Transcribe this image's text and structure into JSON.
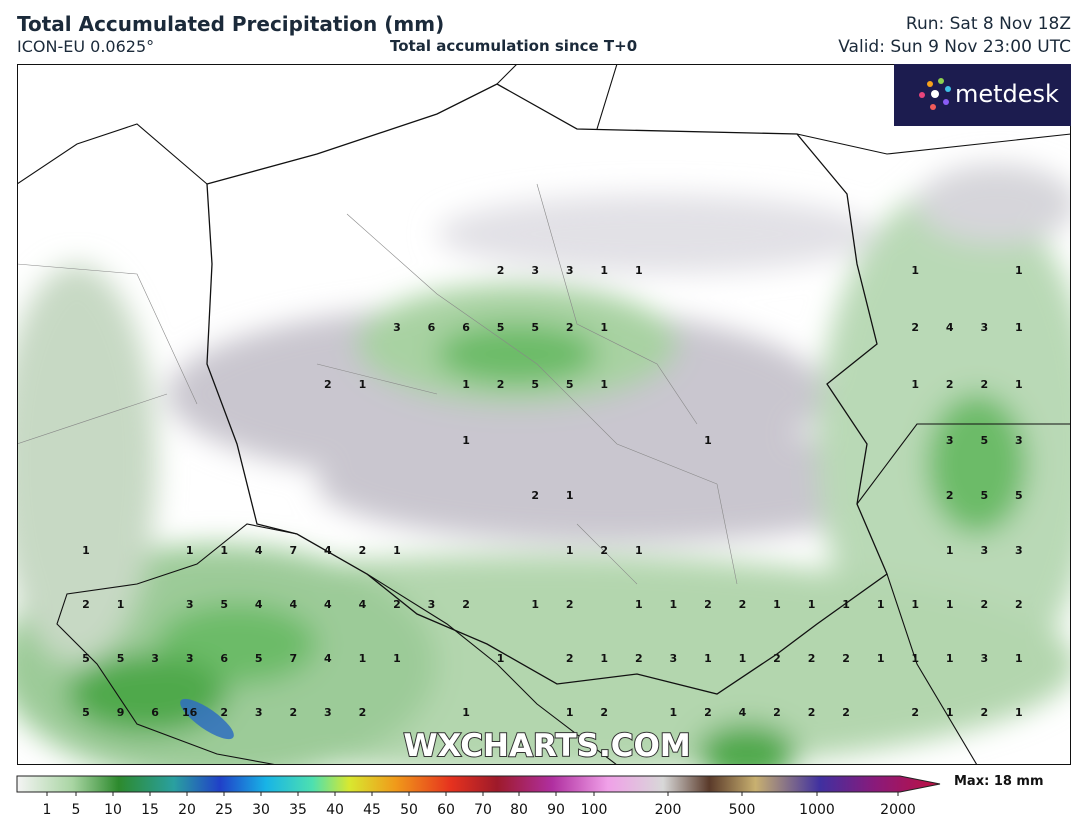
{
  "header": {
    "title": "Total Accumulated Precipitation (mm)",
    "model": "ICON-EU 0.0625°",
    "subtitle": "Total accumulation since T+0",
    "run": "Run: Sat 8 Nov 18Z",
    "valid": "Valid: Sun 9 Nov 23:00 UTC"
  },
  "logo": "metdesk",
  "watermark": "WXCHARTS.COM",
  "map": {
    "labels": [
      [
        null,
        null,
        null,
        null,
        null,
        null,
        null,
        null,
        null,
        null,
        null,
        null,
        2,
        3,
        3,
        1,
        1,
        null,
        null,
        null,
        null,
        null,
        null,
        null,
        1,
        null,
        null,
        1
      ],
      [
        null,
        null,
        null,
        null,
        null,
        null,
        null,
        null,
        null,
        3,
        6,
        6,
        5,
        5,
        2,
        1,
        null,
        null,
        null,
        null,
        null,
        null,
        null,
        null,
        2,
        4,
        3,
        1
      ],
      [
        null,
        null,
        null,
        null,
        null,
        null,
        null,
        2,
        1,
        null,
        null,
        1,
        2,
        5,
        5,
        1,
        null,
        null,
        null,
        null,
        null,
        null,
        null,
        null,
        1,
        2,
        2,
        1
      ],
      [
        null,
        null,
        null,
        null,
        null,
        null,
        null,
        null,
        null,
        null,
        null,
        1,
        null,
        null,
        null,
        null,
        null,
        null,
        1,
        null,
        null,
        null,
        null,
        null,
        null,
        3,
        5,
        3
      ],
      [
        null,
        null,
        null,
        null,
        null,
        null,
        null,
        null,
        null,
        null,
        null,
        null,
        null,
        2,
        1,
        null,
        null,
        null,
        null,
        null,
        null,
        null,
        null,
        null,
        null,
        2,
        5,
        5
      ],
      [
        1,
        null,
        null,
        1,
        1,
        4,
        7,
        4,
        2,
        1,
        null,
        null,
        null,
        null,
        1,
        2,
        1,
        null,
        null,
        null,
        null,
        null,
        null,
        null,
        null,
        1,
        3,
        3
      ],
      [
        2,
        1,
        null,
        3,
        5,
        4,
        4,
        4,
        4,
        2,
        3,
        2,
        null,
        1,
        2,
        null,
        1,
        1,
        2,
        2,
        1,
        1,
        1,
        1,
        1,
        1,
        2,
        2
      ],
      [
        5,
        5,
        3,
        3,
        6,
        5,
        7,
        4,
        1,
        1,
        null,
        null,
        1,
        null,
        2,
        1,
        2,
        3,
        1,
        1,
        2,
        2,
        2,
        1,
        1,
        1,
        3,
        1
      ],
      [
        5,
        9,
        6,
        16,
        2,
        3,
        2,
        3,
        2,
        null,
        null,
        1,
        null,
        null,
        1,
        2,
        null,
        1,
        2,
        4,
        2,
        2,
        2,
        null,
        2,
        1,
        2,
        1
      ]
    ]
  },
  "colorbar": {
    "ticks": [
      1,
      5,
      10,
      15,
      20,
      25,
      30,
      35,
      40,
      45,
      50,
      60,
      70,
      80,
      90,
      100,
      200,
      500,
      1000,
      2000
    ],
    "max_label": "Max: 18 mm"
  }
}
